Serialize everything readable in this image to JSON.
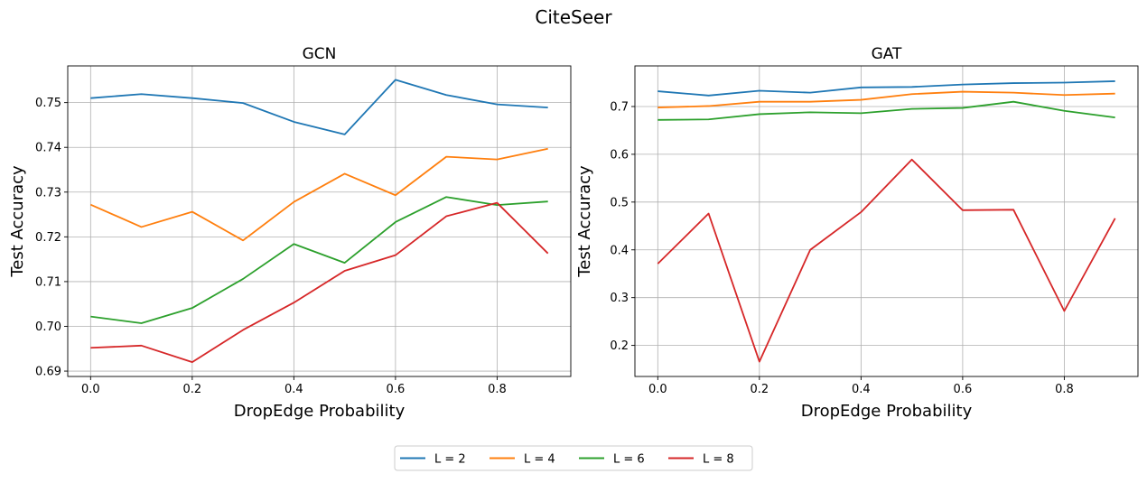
{
  "figure": {
    "suptitle": "CiteSeer"
  },
  "legend": {
    "placement": "bottom-center",
    "entries": [
      {
        "label": "L = 2",
        "color": "#1f77b4"
      },
      {
        "label": "L = 4",
        "color": "#ff7f0e"
      },
      {
        "label": "L = 6",
        "color": "#2ca02c"
      },
      {
        "label": "L = 8",
        "color": "#d62728"
      }
    ]
  },
  "chart_data": [
    {
      "type": "line",
      "title": "GCN",
      "xlabel": "DropEdge Probability",
      "ylabel": "Test Accuracy",
      "grid": true,
      "x": [
        0.0,
        0.1,
        0.2,
        0.3,
        0.4,
        0.5,
        0.6,
        0.7,
        0.8,
        0.9
      ],
      "xlim": [
        -0.045,
        0.945
      ],
      "ylim": [
        0.6888,
        0.7582
      ],
      "xticks": [
        0.0,
        0.2,
        0.4,
        0.6,
        0.8
      ],
      "xtick_labels": [
        "0.0",
        "0.2",
        "0.4",
        "0.6",
        "0.8"
      ],
      "yticks": [
        0.69,
        0.7,
        0.71,
        0.72,
        0.73,
        0.74,
        0.75
      ],
      "ytick_labels": [
        "0.69",
        "0.70",
        "0.71",
        "0.72",
        "0.73",
        "0.74",
        "0.75"
      ],
      "series": [
        {
          "name": "L = 2",
          "color": "#1f77b4",
          "values": [
            0.751,
            0.7519,
            0.751,
            0.7499,
            0.7457,
            0.7429,
            0.7551,
            0.7517,
            0.7496,
            0.7489
          ]
        },
        {
          "name": "L = 4",
          "color": "#ff7f0e",
          "values": [
            0.7272,
            0.7222,
            0.7256,
            0.7192,
            0.7278,
            0.7341,
            0.7293,
            0.7379,
            0.7373,
            0.7397
          ]
        },
        {
          "name": "L = 6",
          "color": "#2ca02c",
          "values": [
            0.7022,
            0.7007,
            0.7041,
            0.7106,
            0.7184,
            0.7142,
            0.7233,
            0.7289,
            0.7271,
            0.7279
          ]
        },
        {
          "name": "L = 8",
          "color": "#d62728",
          "values": [
            0.6952,
            0.6957,
            0.692,
            0.6992,
            0.7053,
            0.7124,
            0.7159,
            0.7246,
            0.7276,
            0.7163
          ]
        }
      ]
    },
    {
      "type": "line",
      "title": "GAT",
      "xlabel": "DropEdge Probability",
      "ylabel": "Test Accuracy",
      "grid": true,
      "x": [
        0.0,
        0.1,
        0.2,
        0.3,
        0.4,
        0.5,
        0.6,
        0.7,
        0.8,
        0.9
      ],
      "xlim": [
        -0.045,
        0.945
      ],
      "ylim": [
        0.135,
        0.785
      ],
      "xticks": [
        0.0,
        0.2,
        0.4,
        0.6,
        0.8
      ],
      "xtick_labels": [
        "0.0",
        "0.2",
        "0.4",
        "0.6",
        "0.8"
      ],
      "yticks": [
        0.2,
        0.3,
        0.4,
        0.5,
        0.6,
        0.7
      ],
      "ytick_labels": [
        "0.2",
        "0.3",
        "0.4",
        "0.5",
        "0.6",
        "0.7"
      ],
      "series": [
        {
          "name": "L = 2",
          "color": "#1f77b4",
          "values": [
            0.732,
            0.723,
            0.733,
            0.729,
            0.74,
            0.741,
            0.746,
            0.749,
            0.75,
            0.753
          ]
        },
        {
          "name": "L = 4",
          "color": "#ff7f0e",
          "values": [
            0.698,
            0.701,
            0.71,
            0.71,
            0.714,
            0.726,
            0.731,
            0.729,
            0.724,
            0.727
          ]
        },
        {
          "name": "L = 6",
          "color": "#2ca02c",
          "values": [
            0.672,
            0.673,
            0.684,
            0.688,
            0.686,
            0.695,
            0.697,
            0.71,
            0.691,
            0.677
          ]
        },
        {
          "name": "L = 8",
          "color": "#d62728",
          "values": [
            0.371,
            0.476,
            0.166,
            0.4,
            0.479,
            0.589,
            0.483,
            0.484,
            0.272,
            0.466
          ]
        }
      ]
    }
  ]
}
